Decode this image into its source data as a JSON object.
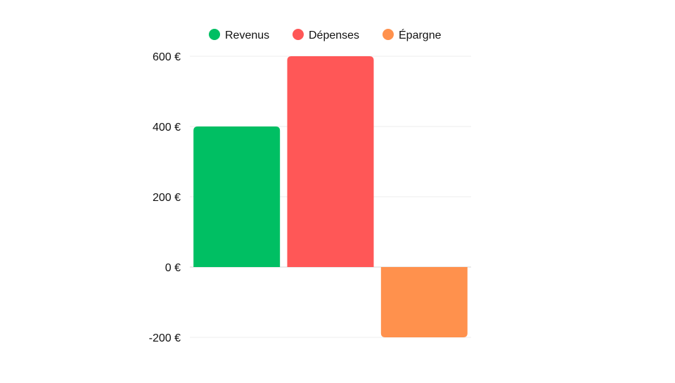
{
  "chart_data": {
    "type": "bar",
    "categories": [
      "Revenus",
      "Dépenses",
      "Épargne"
    ],
    "values": [
      400,
      600,
      -200
    ],
    "colors": [
      "#00bf63",
      "#ff5757",
      "#ff914d"
    ],
    "ylim": [
      -200,
      600
    ],
    "yticks": [
      {
        "value": 600,
        "label": "600 €"
      },
      {
        "value": 400,
        "label": "400 €"
      },
      {
        "value": 200,
        "label": "200 €"
      },
      {
        "value": 0,
        "label": "0 €"
      },
      {
        "value": -200,
        "label": "-200 €"
      }
    ],
    "grid": true,
    "legend": {
      "placement": "top-center",
      "items": [
        {
          "label": "Revenus",
          "color": "#00bf63"
        },
        {
          "label": "Dépenses",
          "color": "#ff5757"
        },
        {
          "label": "Épargne",
          "color": "#ff914d"
        }
      ]
    }
  }
}
